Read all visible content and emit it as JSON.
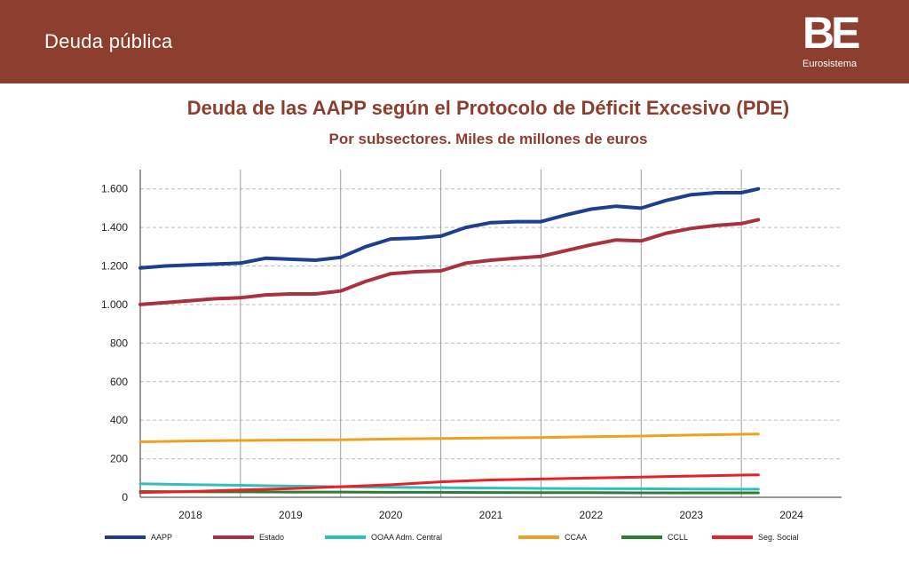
{
  "header": {
    "title": "Deuda pública",
    "logo": "BE",
    "logo_subtitle": "Eurosistema"
  },
  "chart_data": {
    "type": "line",
    "title": "Deuda de las AAPP según el Protocolo de Déficit Excesivo (PDE)",
    "subtitle": "Por subsectores. Miles de millones de euros",
    "xlabel": "",
    "ylabel": "",
    "x_range": [
      2018,
      2025
    ],
    "ylim": [
      0,
      1700
    ],
    "y_ticks": [
      0,
      200,
      400,
      600,
      800,
      1000,
      1200,
      1400,
      1600
    ],
    "y_tick_labels": [
      "0",
      "200",
      "400",
      "600",
      "800",
      "1.000",
      "1.200",
      "1.400",
      "1.600"
    ],
    "x_tick_labels": [
      "2018",
      "2019",
      "2020",
      "2021",
      "2022",
      "2023",
      "2024"
    ],
    "grid": true,
    "legend_position": "bottom",
    "series": [
      {
        "name": "AAPP",
        "color": "#1f3f8e",
        "width": 4,
        "x": [
          2018.0,
          2018.25,
          2018.5,
          2018.75,
          2019.0,
          2019.25,
          2019.5,
          2019.75,
          2020.0,
          2020.25,
          2020.5,
          2020.75,
          2021.0,
          2021.25,
          2021.5,
          2021.75,
          2022.0,
          2022.25,
          2022.5,
          2022.75,
          2023.0,
          2023.25,
          2023.5,
          2023.75,
          2024.0,
          2024.17
        ],
        "y": [
          1190,
          1200,
          1205,
          1210,
          1215,
          1240,
          1235,
          1230,
          1245,
          1300,
          1340,
          1345,
          1355,
          1400,
          1425,
          1430,
          1430,
          1465,
          1495,
          1510,
          1500,
          1540,
          1570,
          1580,
          1580,
          1600
        ]
      },
      {
        "name": "Estado",
        "color": "#a83240",
        "width": 4,
        "x": [
          2018.0,
          2018.25,
          2018.5,
          2018.75,
          2019.0,
          2019.25,
          2019.5,
          2019.75,
          2020.0,
          2020.25,
          2020.5,
          2020.75,
          2021.0,
          2021.25,
          2021.5,
          2021.75,
          2022.0,
          2022.25,
          2022.5,
          2022.75,
          2023.0,
          2023.25,
          2023.5,
          2023.75,
          2024.0,
          2024.17
        ],
        "y": [
          1000,
          1010,
          1020,
          1030,
          1035,
          1050,
          1055,
          1055,
          1070,
          1120,
          1160,
          1170,
          1175,
          1215,
          1230,
          1240,
          1250,
          1280,
          1310,
          1335,
          1330,
          1370,
          1395,
          1410,
          1420,
          1440
        ]
      },
      {
        "name": "OOAA Adm. Central",
        "color": "#33bfb9",
        "width": 3,
        "x": [
          2018.0,
          2018.5,
          2019.0,
          2019.5,
          2020.0,
          2020.5,
          2021.0,
          2021.5,
          2022.0,
          2022.5,
          2023.0,
          2023.5,
          2024.0,
          2024.17
        ],
        "y": [
          70,
          66,
          62,
          58,
          55,
          52,
          50,
          48,
          46,
          45,
          44,
          43,
          42,
          42
        ]
      },
      {
        "name": "CCAA",
        "color": "#f0a020",
        "width": 3,
        "x": [
          2018.0,
          2018.5,
          2019.0,
          2019.5,
          2020.0,
          2020.5,
          2021.0,
          2021.5,
          2022.0,
          2022.5,
          2023.0,
          2023.5,
          2024.0,
          2024.17
        ],
        "y": [
          288,
          292,
          295,
          297,
          298,
          302,
          305,
          308,
          310,
          314,
          318,
          323,
          327,
          328
        ]
      },
      {
        "name": "CCLL",
        "color": "#2e7d32",
        "width": 3,
        "x": [
          2018.0,
          2018.5,
          2019.0,
          2019.5,
          2020.0,
          2020.5,
          2021.0,
          2021.5,
          2022.0,
          2022.5,
          2023.0,
          2023.5,
          2024.0,
          2024.17
        ],
        "y": [
          30,
          29,
          28,
          27,
          27,
          26,
          26,
          25,
          24,
          24,
          23,
          23,
          23,
          23
        ]
      },
      {
        "name": "Seg. Social",
        "color": "#e8202a",
        "width": 3,
        "x": [
          2018.0,
          2018.5,
          2019.0,
          2019.5,
          2020.0,
          2020.5,
          2021.0,
          2021.5,
          2022.0,
          2022.5,
          2023.0,
          2023.5,
          2024.0,
          2024.17
        ],
        "y": [
          25,
          30,
          38,
          45,
          55,
          65,
          80,
          90,
          95,
          100,
          105,
          110,
          115,
          116
        ]
      }
    ]
  }
}
